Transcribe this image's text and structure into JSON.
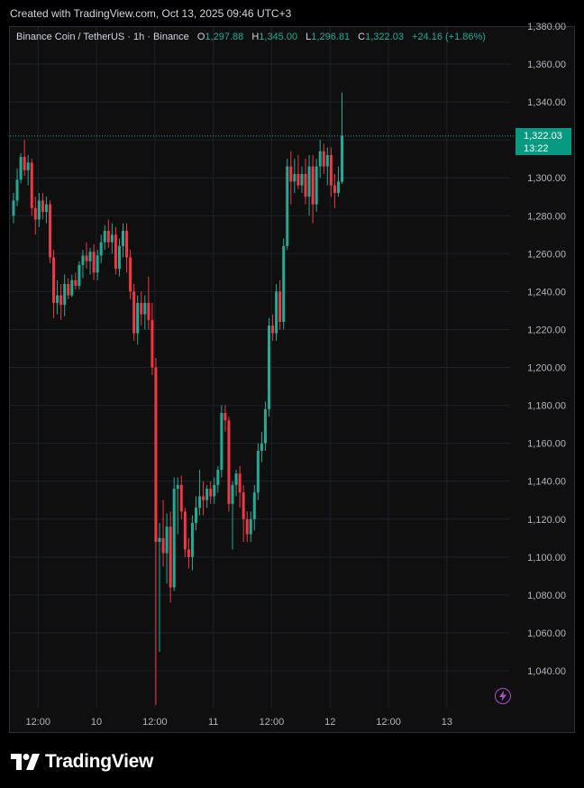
{
  "header": {
    "created_text": "Created with TradingView.com, Oct 13, 2025 09:46 UTC+3"
  },
  "legend": {
    "symbol": "Binance Coin / TetherUS · 1h · Binance",
    "o_label": "O",
    "o_value": "1,297.88",
    "h_label": "H",
    "h_value": "1,345.00",
    "l_label": "L",
    "l_value": "1,296.81",
    "c_label": "C",
    "c_value": "1,322.03",
    "change": "+24.16 (+1.86%)"
  },
  "price_tag": {
    "price": "1,322.03",
    "countdown": "13:22"
  },
  "brand": {
    "name": "TradingView"
  },
  "colors": {
    "up": "#22ab94",
    "down": "#f23645",
    "grid": "#1e222d",
    "axis_text": "#b2b5be",
    "background": "#0f0f0f"
  },
  "icons": {
    "brand_logo": "tradingview-logo-icon",
    "bolt": "lightning-icon"
  },
  "chart_data": {
    "type": "candlestick",
    "title": "Binance Coin / TetherUS · 1h · Binance",
    "y_axis": {
      "ticks": [
        "1,040.00",
        "1,060.00",
        "1,080.00",
        "1,100.00",
        "1,120.00",
        "1,140.00",
        "1,160.00",
        "1,180.00",
        "1,200.00",
        "1,220.00",
        "1,240.00",
        "1,260.00",
        "1,280.00",
        "1,300.00",
        "1,320.00",
        "1,340.00",
        "1,360.00",
        "1,380.00"
      ],
      "tick_values": [
        1040,
        1060,
        1080,
        1100,
        1120,
        1140,
        1160,
        1180,
        1200,
        1220,
        1240,
        1260,
        1280,
        1300,
        1320,
        1340,
        1360,
        1380
      ],
      "range": [
        1020,
        1383
      ]
    },
    "x_axis": {
      "labels": [
        "12:00",
        "10",
        "12:00",
        "11",
        "12:00",
        "12",
        "12:00",
        "13"
      ],
      "label_candle_index": [
        5,
        21,
        37,
        53,
        69,
        85,
        101,
        117
      ]
    },
    "last_price_line": 1322.03,
    "grid": true,
    "candles": [
      {
        "o": 1280,
        "h": 1292,
        "l": 1276,
        "c": 1288
      },
      {
        "o": 1288,
        "h": 1305,
        "l": 1285,
        "c": 1299
      },
      {
        "o": 1299,
        "h": 1313,
        "l": 1297,
        "c": 1311
      },
      {
        "o": 1311,
        "h": 1320,
        "l": 1301,
        "c": 1304
      },
      {
        "o": 1304,
        "h": 1312,
        "l": 1296,
        "c": 1308
      },
      {
        "o": 1308,
        "h": 1310,
        "l": 1280,
        "c": 1284
      },
      {
        "o": 1284,
        "h": 1290,
        "l": 1270,
        "c": 1278
      },
      {
        "o": 1278,
        "h": 1292,
        "l": 1274,
        "c": 1288
      },
      {
        "o": 1288,
        "h": 1292,
        "l": 1278,
        "c": 1282
      },
      {
        "o": 1282,
        "h": 1290,
        "l": 1276,
        "c": 1286
      },
      {
        "o": 1286,
        "h": 1288,
        "l": 1255,
        "c": 1258
      },
      {
        "o": 1258,
        "h": 1262,
        "l": 1226,
        "c": 1234
      },
      {
        "o": 1234,
        "h": 1246,
        "l": 1228,
        "c": 1238
      },
      {
        "o": 1238,
        "h": 1244,
        "l": 1225,
        "c": 1233
      },
      {
        "o": 1233,
        "h": 1249,
        "l": 1227,
        "c": 1244
      },
      {
        "o": 1244,
        "h": 1247,
        "l": 1236,
        "c": 1238
      },
      {
        "o": 1238,
        "h": 1249,
        "l": 1237,
        "c": 1246
      },
      {
        "o": 1246,
        "h": 1250,
        "l": 1241,
        "c": 1243
      },
      {
        "o": 1243,
        "h": 1256,
        "l": 1241,
        "c": 1254
      },
      {
        "o": 1254,
        "h": 1262,
        "l": 1247,
        "c": 1259
      },
      {
        "o": 1259,
        "h": 1266,
        "l": 1252,
        "c": 1256
      },
      {
        "o": 1256,
        "h": 1263,
        "l": 1249,
        "c": 1261
      },
      {
        "o": 1261,
        "h": 1265,
        "l": 1246,
        "c": 1250
      },
      {
        "o": 1250,
        "h": 1262,
        "l": 1246,
        "c": 1259
      },
      {
        "o": 1259,
        "h": 1270,
        "l": 1255,
        "c": 1266
      },
      {
        "o": 1266,
        "h": 1275,
        "l": 1262,
        "c": 1272
      },
      {
        "o": 1272,
        "h": 1278,
        "l": 1263,
        "c": 1266
      },
      {
        "o": 1266,
        "h": 1276,
        "l": 1260,
        "c": 1270
      },
      {
        "o": 1270,
        "h": 1274,
        "l": 1249,
        "c": 1252
      },
      {
        "o": 1252,
        "h": 1268,
        "l": 1248,
        "c": 1264
      },
      {
        "o": 1264,
        "h": 1276,
        "l": 1258,
        "c": 1272
      },
      {
        "o": 1272,
        "h": 1276,
        "l": 1250,
        "c": 1258
      },
      {
        "o": 1258,
        "h": 1262,
        "l": 1236,
        "c": 1240
      },
      {
        "o": 1240,
        "h": 1244,
        "l": 1214,
        "c": 1218
      },
      {
        "o": 1218,
        "h": 1238,
        "l": 1212,
        "c": 1234
      },
      {
        "o": 1234,
        "h": 1240,
        "l": 1222,
        "c": 1228
      },
      {
        "o": 1228,
        "h": 1238,
        "l": 1220,
        "c": 1234
      },
      {
        "o": 1234,
        "h": 1248,
        "l": 1220,
        "c": 1225
      },
      {
        "o": 1225,
        "h": 1234,
        "l": 1196,
        "c": 1200
      },
      {
        "o": 1200,
        "h": 1205,
        "l": 1022,
        "c": 1108
      },
      {
        "o": 1108,
        "h": 1118,
        "l": 1050,
        "c": 1110
      },
      {
        "o": 1110,
        "h": 1130,
        "l": 1095,
        "c": 1102
      },
      {
        "o": 1102,
        "h": 1123,
        "l": 1086,
        "c": 1116
      },
      {
        "o": 1116,
        "h": 1124,
        "l": 1076,
        "c": 1084
      },
      {
        "o": 1084,
        "h": 1142,
        "l": 1082,
        "c": 1136
      },
      {
        "o": 1136,
        "h": 1142,
        "l": 1112,
        "c": 1138
      },
      {
        "o": 1138,
        "h": 1143,
        "l": 1120,
        "c": 1124
      },
      {
        "o": 1124,
        "h": 1126,
        "l": 1100,
        "c": 1104
      },
      {
        "o": 1104,
        "h": 1110,
        "l": 1094,
        "c": 1100
      },
      {
        "o": 1100,
        "h": 1122,
        "l": 1093,
        "c": 1118
      },
      {
        "o": 1118,
        "h": 1132,
        "l": 1114,
        "c": 1126
      },
      {
        "o": 1126,
        "h": 1146,
        "l": 1122,
        "c": 1132
      },
      {
        "o": 1132,
        "h": 1140,
        "l": 1122,
        "c": 1130
      },
      {
        "o": 1130,
        "h": 1138,
        "l": 1126,
        "c": 1136
      },
      {
        "o": 1136,
        "h": 1140,
        "l": 1128,
        "c": 1132
      },
      {
        "o": 1132,
        "h": 1142,
        "l": 1128,
        "c": 1138
      },
      {
        "o": 1138,
        "h": 1148,
        "l": 1134,
        "c": 1146
      },
      {
        "o": 1146,
        "h": 1180,
        "l": 1142,
        "c": 1176
      },
      {
        "o": 1176,
        "h": 1180,
        "l": 1166,
        "c": 1172
      },
      {
        "o": 1172,
        "h": 1174,
        "l": 1124,
        "c": 1128
      },
      {
        "o": 1128,
        "h": 1140,
        "l": 1104,
        "c": 1138
      },
      {
        "o": 1138,
        "h": 1146,
        "l": 1132,
        "c": 1144
      },
      {
        "o": 1144,
        "h": 1148,
        "l": 1126,
        "c": 1134
      },
      {
        "o": 1134,
        "h": 1138,
        "l": 1108,
        "c": 1120
      },
      {
        "o": 1120,
        "h": 1124,
        "l": 1108,
        "c": 1112
      },
      {
        "o": 1112,
        "h": 1124,
        "l": 1108,
        "c": 1120
      },
      {
        "o": 1120,
        "h": 1138,
        "l": 1114,
        "c": 1134
      },
      {
        "o": 1134,
        "h": 1160,
        "l": 1130,
        "c": 1156
      },
      {
        "o": 1156,
        "h": 1166,
        "l": 1150,
        "c": 1160
      },
      {
        "o": 1160,
        "h": 1182,
        "l": 1156,
        "c": 1178
      },
      {
        "o": 1178,
        "h": 1226,
        "l": 1174,
        "c": 1222
      },
      {
        "o": 1222,
        "h": 1228,
        "l": 1214,
        "c": 1218
      },
      {
        "o": 1218,
        "h": 1244,
        "l": 1214,
        "c": 1240
      },
      {
        "o": 1240,
        "h": 1246,
        "l": 1220,
        "c": 1224
      },
      {
        "o": 1224,
        "h": 1268,
        "l": 1220,
        "c": 1264
      },
      {
        "o": 1264,
        "h": 1310,
        "l": 1262,
        "c": 1306
      },
      {
        "o": 1306,
        "h": 1314,
        "l": 1286,
        "c": 1298
      },
      {
        "o": 1298,
        "h": 1310,
        "l": 1292,
        "c": 1302
      },
      {
        "o": 1302,
        "h": 1312,
        "l": 1294,
        "c": 1296
      },
      {
        "o": 1296,
        "h": 1306,
        "l": 1292,
        "c": 1302
      },
      {
        "o": 1302,
        "h": 1310,
        "l": 1286,
        "c": 1290
      },
      {
        "o": 1290,
        "h": 1312,
        "l": 1280,
        "c": 1306
      },
      {
        "o": 1306,
        "h": 1312,
        "l": 1276,
        "c": 1286
      },
      {
        "o": 1286,
        "h": 1310,
        "l": 1282,
        "c": 1306
      },
      {
        "o": 1306,
        "h": 1320,
        "l": 1300,
        "c": 1314
      },
      {
        "o": 1314,
        "h": 1318,
        "l": 1302,
        "c": 1306
      },
      {
        "o": 1306,
        "h": 1316,
        "l": 1296,
        "c": 1312
      },
      {
        "o": 1312,
        "h": 1316,
        "l": 1290,
        "c": 1296
      },
      {
        "o": 1296,
        "h": 1302,
        "l": 1284,
        "c": 1292
      },
      {
        "o": 1292,
        "h": 1306,
        "l": 1290,
        "c": 1298
      },
      {
        "o": 1297.88,
        "h": 1345,
        "l": 1296.81,
        "c": 1322.03
      }
    ]
  }
}
